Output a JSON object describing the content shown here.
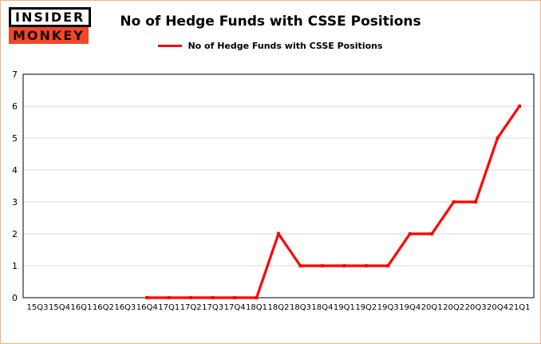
{
  "logo": {
    "line1": "INSIDER",
    "line2": "MONKEY"
  },
  "colors": {
    "line": "#ff0000",
    "grid": "#d9d9d9",
    "axis": "#000000",
    "tick_text": "#000000",
    "logo_red": "#f2482a"
  },
  "chart_data": {
    "type": "line",
    "title": "No of Hedge Funds with CSSE Positions",
    "xlabel": "",
    "ylabel": "",
    "ylim": [
      0,
      7
    ],
    "yticks": [
      0,
      1,
      2,
      3,
      4,
      5,
      6,
      7
    ],
    "grid": "horizontal",
    "legend_position": "top",
    "categories": [
      "15Q3",
      "15Q4",
      "16Q1",
      "16Q2",
      "16Q3",
      "16Q4",
      "17Q1",
      "17Q2",
      "17Q3",
      "17Q4",
      "18Q1",
      "18Q2",
      "18Q3",
      "18Q4",
      "19Q1",
      "19Q2",
      "19Q3",
      "19Q4",
      "20Q1",
      "20Q2",
      "20Q3",
      "20Q4",
      "21Q1"
    ],
    "series": [
      {
        "name": "No of Hedge Funds with CSSE Positions",
        "color": "#ff0000",
        "values": [
          null,
          null,
          null,
          null,
          null,
          0,
          0,
          0,
          0,
          0,
          0,
          2,
          1,
          1,
          1,
          1,
          1,
          2,
          2,
          3,
          3,
          5,
          6
        ]
      }
    ]
  }
}
